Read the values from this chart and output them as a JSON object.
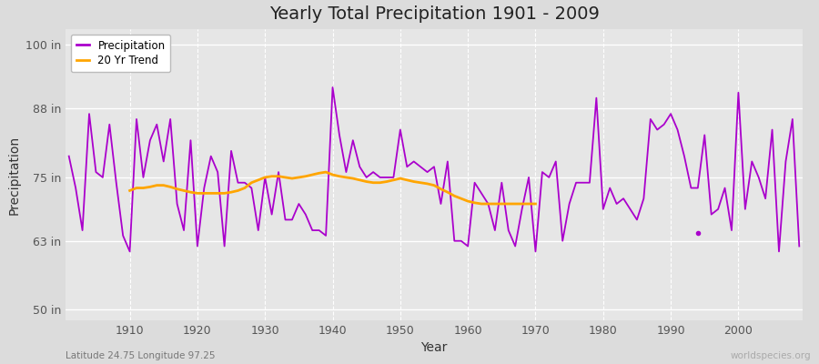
{
  "title": "Yearly Total Precipitation 1901 - 2009",
  "xlabel": "Year",
  "ylabel": "Precipitation",
  "subtitle": "Latitude 24.75 Longitude 97.25",
  "watermark": "worldspecies.org",
  "years": [
    1901,
    1902,
    1903,
    1904,
    1905,
    1906,
    1907,
    1908,
    1909,
    1910,
    1911,
    1912,
    1913,
    1914,
    1915,
    1916,
    1917,
    1918,
    1919,
    1920,
    1921,
    1922,
    1923,
    1924,
    1925,
    1926,
    1927,
    1928,
    1929,
    1930,
    1931,
    1932,
    1933,
    1934,
    1935,
    1936,
    1937,
    1938,
    1939,
    1940,
    1941,
    1942,
    1943,
    1944,
    1945,
    1946,
    1947,
    1948,
    1949,
    1950,
    1951,
    1952,
    1953,
    1954,
    1955,
    1956,
    1957,
    1958,
    1959,
    1960,
    1961,
    1962,
    1963,
    1964,
    1965,
    1966,
    1967,
    1968,
    1969,
    1970,
    1971,
    1972,
    1973,
    1974,
    1975,
    1976,
    1977,
    1978,
    1979,
    1980,
    1981,
    1982,
    1983,
    1984,
    1985,
    1986,
    1987,
    1988,
    1989,
    1990,
    1991,
    1992,
    1993,
    1994,
    1995,
    1996,
    1997,
    1998,
    1999,
    2000,
    2001,
    2002,
    2003,
    2004,
    2005,
    2006,
    2007,
    2008,
    2009
  ],
  "precip": [
    79,
    73,
    65,
    87,
    76,
    75,
    85,
    74,
    64,
    61,
    86,
    75,
    82,
    85,
    78,
    86,
    70,
    65,
    82,
    62,
    73,
    79,
    76,
    62,
    80,
    74,
    74,
    73,
    65,
    75,
    68,
    76,
    67,
    67,
    70,
    68,
    65,
    65,
    64,
    92,
    83,
    76,
    82,
    77,
    75,
    76,
    75,
    75,
    75,
    84,
    77,
    78,
    77,
    76,
    77,
    70,
    78,
    63,
    63,
    62,
    74,
    72,
    70,
    65,
    74,
    65,
    62,
    69,
    75,
    61,
    76,
    75,
    78,
    63,
    70,
    74,
    74,
    74,
    90,
    69,
    73,
    70,
    71,
    69,
    67,
    71,
    86,
    84,
    85,
    87,
    84,
    79,
    73,
    73,
    83,
    68,
    69,
    73,
    65,
    91,
    69,
    78,
    75,
    71,
    84,
    61,
    78,
    86,
    62
  ],
  "trend_years": [
    1910,
    1911,
    1912,
    1913,
    1914,
    1915,
    1916,
    1917,
    1918,
    1919,
    1920,
    1921,
    1922,
    1923,
    1924,
    1925,
    1926,
    1927,
    1928,
    1929,
    1930,
    1931,
    1932,
    1933,
    1934,
    1935,
    1936,
    1937,
    1938,
    1939,
    1940,
    1941,
    1942,
    1943,
    1944,
    1945,
    1946,
    1947,
    1948,
    1949,
    1950,
    1951,
    1952,
    1953,
    1954,
    1955,
    1956,
    1957,
    1958,
    1959,
    1960,
    1961,
    1962,
    1963,
    1964,
    1965,
    1966,
    1967,
    1968,
    1969,
    1970
  ],
  "trend_values": [
    72.5,
    73.0,
    73.0,
    73.2,
    73.5,
    73.5,
    73.2,
    72.8,
    72.5,
    72.2,
    72.0,
    72.0,
    72.0,
    72.0,
    72.0,
    72.2,
    72.5,
    73.0,
    74.0,
    74.5,
    75.0,
    75.2,
    75.2,
    75.0,
    74.8,
    75.0,
    75.2,
    75.5,
    75.8,
    76.0,
    75.5,
    75.2,
    75.0,
    74.8,
    74.5,
    74.2,
    74.0,
    74.0,
    74.2,
    74.5,
    74.8,
    74.5,
    74.2,
    74.0,
    73.8,
    73.5,
    72.8,
    72.2,
    71.5,
    71.0,
    70.5,
    70.2,
    70.0,
    70.0,
    70.0,
    70.0,
    70.0,
    70.0,
    70.0,
    70.0,
    70.0
  ],
  "isolated_dot_x": 1994,
  "isolated_dot_y": 64.5,
  "precip_color": "#AA00CC",
  "trend_color": "#FFA500",
  "bg_color": "#DCDCDC",
  "plot_bg_color": "#E6E6E6",
  "grid_h_color": "#FFFFFF",
  "grid_v_color": "#FFFFFF",
  "yticks": [
    50,
    63,
    75,
    88,
    100
  ],
  "ytick_labels": [
    "50 in",
    "63 in",
    "75 in",
    "88 in",
    "100 in"
  ],
  "ylim": [
    48,
    103
  ],
  "xlim": [
    1900.5,
    2009.5
  ],
  "xticks": [
    1910,
    1920,
    1930,
    1940,
    1950,
    1960,
    1970,
    1980,
    1990,
    2000
  ],
  "title_fontsize": 14,
  "label_fontsize": 10,
  "tick_fontsize": 9
}
